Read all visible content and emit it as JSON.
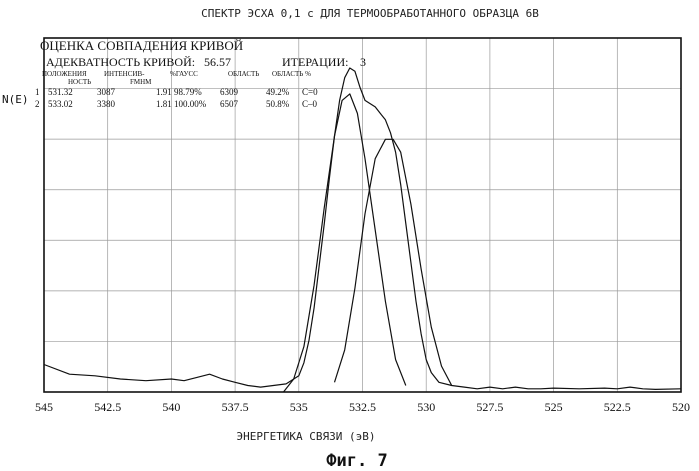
{
  "chart_data": {
    "type": "line",
    "title": "СПЕКТР ЭСХА 0,1 с ДЛЯ ТЕРМООБРАБОТАННОГО ОБРАЗЦА 6В",
    "ylabel": "N(E)",
    "xlabel": "ЭНЕРГЕТИКА СВЯЗИ (эВ)",
    "caption": "Фиг. 7",
    "xlim": [
      545,
      520
    ],
    "ylim": [
      0,
      1
    ],
    "x_ticks": [
      545,
      542.5,
      540,
      537.5,
      535,
      532.5,
      530,
      527.5,
      525,
      522.5,
      520
    ],
    "x_tick_labels": [
      "545",
      "542.5",
      "540",
      "537.5",
      "535",
      "532.5",
      "530",
      "527.5",
      "525",
      "522.5",
      "520"
    ],
    "grid": true,
    "fit_panel": {
      "heading": "ОЦЕНКА СОВПАДЕНИЯ КРИВОЙ",
      "adequacy_label": "АДЕКВАТНОСТЬ КРИВОЙ:",
      "adequacy_value": "56.57",
      "iterations_label": "ИТЕРАЦИИ:",
      "iterations_value": "3",
      "columns": [
        {
          "top": "ПОЛОЖЕНИЯ",
          "bottom": "НОСТЬ"
        },
        {
          "top": "ИНТЕНСИВ-",
          "bottom": "FMHM"
        },
        {
          "top": "%ГАУСС",
          "bottom": ""
        },
        {
          "top": "ОБЛАСТЬ",
          "bottom": ""
        },
        {
          "top": "ОБЛАСТЬ %",
          "bottom": ""
        }
      ],
      "rows": [
        [
          "1",
          "531.32",
          "3087",
          "1.91",
          "98.79%",
          "6309",
          "49.2%",
          "C=0"
        ],
        [
          "2",
          "533.02",
          "3380",
          "1.81",
          "100.00%",
          "6507",
          "50.8%",
          "C–0"
        ]
      ]
    },
    "series": [
      {
        "x": [
          545,
          544,
          543,
          542,
          541,
          540,
          539.5,
          539,
          538.5,
          538,
          537.5,
          537,
          536.5,
          536,
          535.5,
          535,
          534.8,
          534.6,
          534.4,
          534.2,
          534,
          533.8,
          533.6,
          533.4,
          533.2,
          533,
          532.8,
          532.6,
          532.4,
          532.2,
          532,
          531.8,
          531.6,
          531.4,
          531.2,
          531,
          530.8,
          530.6,
          530.4,
          530.2,
          530,
          529.8,
          529.5,
          529,
          528.5,
          528,
          527.5,
          527,
          526.5,
          526,
          525.5,
          525,
          524,
          523,
          522.5,
          522,
          521.5,
          521,
          520
        ],
        "values": [
          0.085,
          0.055,
          0.05,
          0.04,
          0.035,
          0.04,
          0.035,
          0.045,
          0.055,
          0.04,
          0.03,
          0.02,
          0.015,
          0.02,
          0.025,
          0.05,
          0.09,
          0.16,
          0.26,
          0.39,
          0.52,
          0.66,
          0.79,
          0.9,
          0.97,
          1.0,
          0.99,
          0.94,
          0.9,
          0.89,
          0.88,
          0.86,
          0.84,
          0.8,
          0.74,
          0.64,
          0.52,
          0.4,
          0.28,
          0.18,
          0.1,
          0.06,
          0.03,
          0.02,
          0.015,
          0.01,
          0.015,
          0.01,
          0.015,
          0.01,
          0.01,
          0.012,
          0.01,
          0.012,
          0.01,
          0.015,
          0.01,
          0.008,
          0.01
        ]
      },
      {
        "x": [
          535.6,
          535.2,
          534.8,
          534.4,
          534,
          533.6,
          533.3,
          533.0,
          532.7,
          532.4,
          532.0,
          531.6,
          531.2,
          530.8
        ],
        "values": [
          0.0,
          0.04,
          0.14,
          0.33,
          0.57,
          0.79,
          0.9,
          0.92,
          0.86,
          0.72,
          0.5,
          0.28,
          0.1,
          0.02
        ]
      },
      {
        "x": [
          533.6,
          533.2,
          532.8,
          532.4,
          532.0,
          531.6,
          531.3,
          531.0,
          530.6,
          530.2,
          529.8,
          529.4,
          529.0
        ],
        "values": [
          0.03,
          0.13,
          0.32,
          0.55,
          0.72,
          0.78,
          0.78,
          0.74,
          0.58,
          0.38,
          0.2,
          0.08,
          0.02
        ]
      }
    ]
  }
}
